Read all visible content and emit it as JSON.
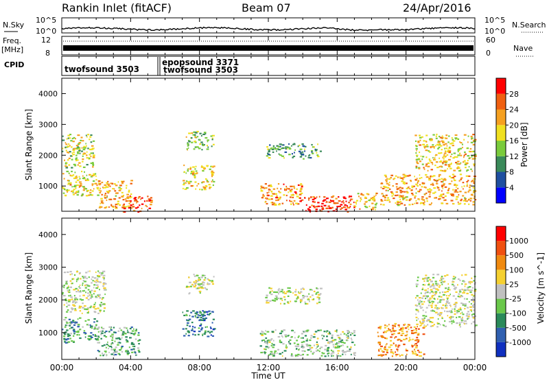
{
  "header": {
    "station": "Rankin Inlet (fitACF)",
    "beam": "Beam 07",
    "date": "24/Apr/2016"
  },
  "strips": {
    "nsky_label": "N.Sky",
    "nsky_ticks": [
      "10^5",
      "10^0"
    ],
    "nsearch_label": "N.Search",
    "freq_label": "Freq.",
    "freq_unit": "[MHz]",
    "freq_ticks": [
      "12",
      "8"
    ],
    "nave_label": "Nave",
    "nave_ticks": [
      "60",
      "0"
    ],
    "cpid_label": "CPID",
    "cpid_entries": [
      "twofsound 3503",
      "epopsound 3371",
      "twofsound 3503"
    ]
  },
  "axes": {
    "xlabel": "Time UT",
    "ylabel": "Slant Range [km]",
    "xticks": [
      "00:00",
      "04:00",
      "08:00",
      "12:00",
      "16:00",
      "20:00",
      "00:00"
    ],
    "yticks": [
      "1000",
      "2000",
      "3000",
      "4000"
    ]
  },
  "colorbars": {
    "power": {
      "label": "Power [dB]",
      "ticks": [
        "4",
        "8",
        "12",
        "16",
        "20",
        "24",
        "28"
      ],
      "colors": [
        "#0000ff",
        "#1f4fa0",
        "#3a8a5a",
        "#7acb3c",
        "#f0e020",
        "#f5a020",
        "#f06010",
        "#ff0000"
      ]
    },
    "velocity": {
      "label": "Velocity [m s^-1]",
      "ticks": [
        "1000",
        "500",
        "100",
        "25",
        "-25",
        "-100",
        "-500",
        "-1000"
      ],
      "colors": [
        "#1030c0",
        "#3060b0",
        "#2a8a5a",
        "#6ac84a",
        "#c0c0c0",
        "#f5d030",
        "#f08a10",
        "#f05010",
        "#ff0000"
      ]
    }
  },
  "chart_data": [
    {
      "type": "heatmap",
      "title": "Power",
      "x": "Time UT",
      "y": "Slant Range",
      "xlim": [
        0,
        24
      ],
      "ylim": [
        180,
        4500
      ],
      "scatter_regions": [
        {
          "t": [
            0.0,
            2.0
          ],
          "range": [
            700,
            1500
          ],
          "level": 0.6
        },
        {
          "t": [
            0.0,
            1.8
          ],
          "range": [
            1600,
            2700
          ],
          "level": 0.5
        },
        {
          "t": [
            2.0,
            4.0
          ],
          "range": [
            300,
            1200
          ],
          "level": 0.7
        },
        {
          "t": [
            3.5,
            5.2
          ],
          "range": [
            180,
            700
          ],
          "level": 0.85
        },
        {
          "t": [
            7.0,
            8.8
          ],
          "range": [
            900,
            1700
          ],
          "level": 0.6
        },
        {
          "t": [
            7.2,
            8.8
          ],
          "range": [
            2200,
            2800
          ],
          "level": 0.45
        },
        {
          "t": [
            11.5,
            14.0
          ],
          "range": [
            400,
            1100
          ],
          "level": 0.75
        },
        {
          "t": [
            14.0,
            17.0
          ],
          "range": [
            180,
            700
          ],
          "level": 0.95
        },
        {
          "t": [
            11.8,
            15.0
          ],
          "range": [
            1900,
            2400
          ],
          "level": 0.35
        },
        {
          "t": [
            17.0,
            18.3
          ],
          "range": [
            250,
            800
          ],
          "level": 0.6
        },
        {
          "t": [
            18.5,
            24.0
          ],
          "range": [
            400,
            1400
          ],
          "level": 0.7
        },
        {
          "t": [
            20.5,
            24.0
          ],
          "range": [
            1500,
            2700
          ],
          "level": 0.6
        }
      ]
    },
    {
      "type": "heatmap",
      "title": "Velocity",
      "x": "Time UT",
      "y": "Slant Range",
      "xlim": [
        0,
        24
      ],
      "ylim": [
        180,
        4500
      ],
      "scatter_regions": [
        {
          "t": [
            0.0,
            2.0
          ],
          "range": [
            700,
            1500
          ],
          "level": 0.3
        },
        {
          "t": [
            0.0,
            2.5
          ],
          "range": [
            1600,
            2900
          ],
          "level": 0.5
        },
        {
          "t": [
            2.0,
            4.5
          ],
          "range": [
            300,
            1200
          ],
          "level": 0.35
        },
        {
          "t": [
            7.0,
            8.8
          ],
          "range": [
            900,
            1700
          ],
          "level": 0.2
        },
        {
          "t": [
            7.2,
            8.8
          ],
          "range": [
            2200,
            2800
          ],
          "level": 0.5
        },
        {
          "t": [
            11.5,
            17.0
          ],
          "range": [
            300,
            1100
          ],
          "level": 0.4
        },
        {
          "t": [
            11.8,
            15.0
          ],
          "range": [
            1900,
            2400
          ],
          "level": 0.5
        },
        {
          "t": [
            18.3,
            21.0
          ],
          "range": [
            300,
            1300
          ],
          "level": 0.75
        },
        {
          "t": [
            20.5,
            24.0
          ],
          "range": [
            1200,
            2800
          ],
          "level": 0.5
        }
      ]
    }
  ]
}
